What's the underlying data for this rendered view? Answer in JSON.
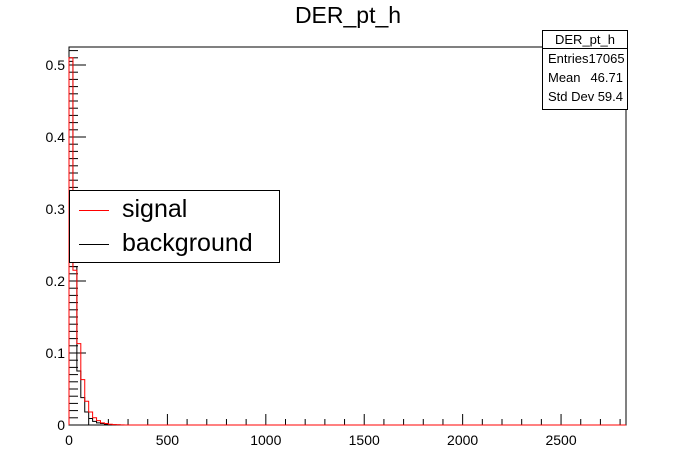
{
  "chart_data": {
    "type": "histogram",
    "title": "DER_pt_h",
    "xlabel": "",
    "ylabel": "",
    "xlim": [
      0,
      2830
    ],
    "ylim": [
      0,
      0.525
    ],
    "bin_width": 20,
    "x_ticks": [
      "0",
      "500",
      "1000",
      "1500",
      "2000",
      "2500"
    ],
    "y_ticks": [
      "0",
      "0.1",
      "0.2",
      "0.3",
      "0.4",
      "0.5"
    ],
    "series": [
      {
        "name": "signal",
        "color": "#ff0000",
        "bins": [
          [
            0,
            0.51
          ],
          [
            20,
            0.215
          ],
          [
            40,
            0.113
          ],
          [
            60,
            0.063
          ],
          [
            80,
            0.033
          ],
          [
            100,
            0.018
          ],
          [
            120,
            0.01
          ],
          [
            140,
            0.006
          ],
          [
            160,
            0.003
          ],
          [
            180,
            0.002
          ],
          [
            200,
            0.001
          ],
          [
            220,
            0.0005
          ],
          [
            240,
            0.0003
          ],
          [
            260,
            0.0001
          ],
          [
            280,
            0
          ]
        ]
      },
      {
        "name": "background",
        "color": "#000000",
        "bins": [
          [
            0,
            0.505
          ],
          [
            20,
            0.22
          ],
          [
            40,
            0.075
          ],
          [
            60,
            0.038
          ],
          [
            80,
            0.018
          ],
          [
            100,
            0.009
          ],
          [
            120,
            0.005
          ],
          [
            140,
            0.003
          ],
          [
            160,
            0.002
          ],
          [
            180,
            0.001
          ],
          [
            200,
            0.0005
          ],
          [
            220,
            0.0003
          ],
          [
            240,
            0.0001
          ],
          [
            260,
            0
          ]
        ]
      }
    ],
    "legend": {
      "position": "left-center",
      "entries": [
        "signal",
        "background"
      ]
    },
    "stats_box": {
      "title": "DER_pt_h",
      "rows": [
        {
          "label": "Entries",
          "value": "17065"
        },
        {
          "label": "Mean",
          "value": "46.71"
        },
        {
          "label": "Std Dev",
          "value": "59.4"
        }
      ]
    },
    "grid": false
  }
}
